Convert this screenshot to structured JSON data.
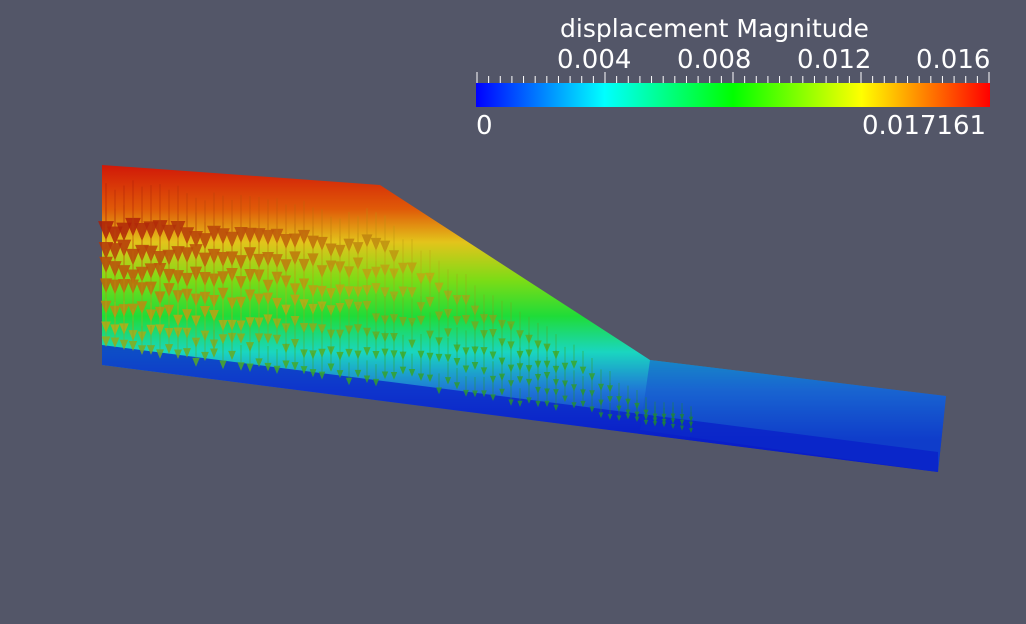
{
  "legend": {
    "title": "displacement Magnitude",
    "ticks": [
      "0.004",
      "0.008",
      "0.012",
      "0.016"
    ],
    "min_label": "0",
    "max_label": "0.017161",
    "min_value": 0,
    "max_value": 0.017161,
    "tick_values": [
      0.004,
      0.008,
      0.012,
      0.016
    ],
    "colormap": [
      "#0000ff",
      "#0080ff",
      "#00ffff",
      "#00ff80",
      "#00ff00",
      "#80ff00",
      "#ffff00",
      "#ff8000",
      "#ff0000"
    ]
  },
  "scene": {
    "background": "#535668",
    "glyph_type": "cone-arrows",
    "glyph_direction": "downward"
  }
}
